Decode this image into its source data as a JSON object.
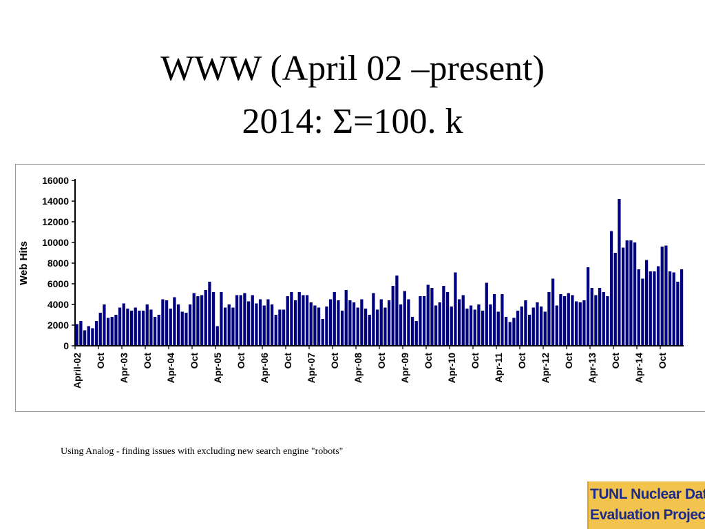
{
  "slide": {
    "title_line1": "WWW (April 02 –present)",
    "title_line2": "2014: Σ=100. k",
    "note": "Using Analog - finding issues with excluding new search engine \"robots\"",
    "logo_line1": "TUNL Nuclear Data",
    "logo_line2": "Evaluation Project"
  },
  "chart_data": {
    "type": "bar",
    "ylabel": "Web Hits",
    "ylim": [
      0,
      16000
    ],
    "yticks": [
      0,
      2000,
      4000,
      6000,
      8000,
      10000,
      12000,
      14000,
      16000
    ],
    "bar_color": "#000080",
    "grid": false,
    "x_tick_labels": [
      {
        "index": 0,
        "label": "April-02"
      },
      {
        "index": 6,
        "label": "Oct"
      },
      {
        "index": 12,
        "label": "Apr-03"
      },
      {
        "index": 18,
        "label": "Oct"
      },
      {
        "index": 24,
        "label": "Apr-04"
      },
      {
        "index": 30,
        "label": "Oct"
      },
      {
        "index": 36,
        "label": "Apr-05"
      },
      {
        "index": 42,
        "label": "Oct"
      },
      {
        "index": 48,
        "label": "Apr-06"
      },
      {
        "index": 54,
        "label": "Oct"
      },
      {
        "index": 60,
        "label": "Apr-07"
      },
      {
        "index": 66,
        "label": "Oct"
      },
      {
        "index": 72,
        "label": "Apr-08"
      },
      {
        "index": 78,
        "label": "Oct"
      },
      {
        "index": 84,
        "label": "Apr-09"
      },
      {
        "index": 90,
        "label": "Oct"
      },
      {
        "index": 96,
        "label": "Apr-10"
      },
      {
        "index": 102,
        "label": "Oct"
      },
      {
        "index": 108,
        "label": "Apr-11"
      },
      {
        "index": 114,
        "label": "Oct"
      },
      {
        "index": 120,
        "label": "Apr-12"
      },
      {
        "index": 126,
        "label": "Oct"
      },
      {
        "index": 132,
        "label": "Apr-13"
      },
      {
        "index": 138,
        "label": "Oct"
      },
      {
        "index": 144,
        "label": "Apr-14"
      },
      {
        "index": 150,
        "label": "Oct"
      }
    ],
    "values": [
      2100,
      2400,
      1500,
      1900,
      1700,
      2400,
      3200,
      4000,
      2700,
      2800,
      3000,
      3700,
      4100,
      3600,
      3400,
      3700,
      3400,
      3400,
      4000,
      3500,
      2800,
      3000,
      4500,
      4400,
      3600,
      4700,
      4000,
      3300,
      3200,
      4000,
      5100,
      4800,
      4900,
      5400,
      6200,
      5200,
      1900,
      5200,
      3700,
      4000,
      3700,
      4900,
      4900,
      5100,
      4300,
      4900,
      4100,
      4500,
      3900,
      4500,
      4000,
      3000,
      3500,
      3500,
      4800,
      5200,
      4400,
      5200,
      4900,
      4900,
      4200,
      3900,
      3700,
      2600,
      3800,
      4500,
      5200,
      4400,
      3400,
      5400,
      4400,
      4200,
      3700,
      4500,
      3600,
      3000,
      5100,
      3500,
      4500,
      3700,
      4400,
      5800,
      6800,
      4000,
      5300,
      4500,
      2800,
      2400,
      4800,
      4800,
      5900,
      5600,
      3900,
      4200,
      5800,
      5200,
      3800,
      7100,
      4500,
      4900,
      3600,
      3900,
      3500,
      4000,
      3400,
      6100,
      4000,
      5000,
      3300,
      5000,
      2800,
      2300,
      2700,
      3400,
      3800,
      4400,
      3000,
      3700,
      4200,
      3800,
      3300,
      5200,
      6500,
      3900,
      5000,
      4800,
      5100,
      4900,
      4300,
      4200,
      4400,
      7600,
      5600,
      4900,
      5600,
      5200,
      4800,
      11100,
      9000,
      14200,
      9500,
      10200,
      10200,
      10000,
      7400,
      6500,
      8300,
      7200,
      7200,
      7700,
      9600,
      9700,
      7200,
      7100,
      6200,
      7400
    ]
  }
}
